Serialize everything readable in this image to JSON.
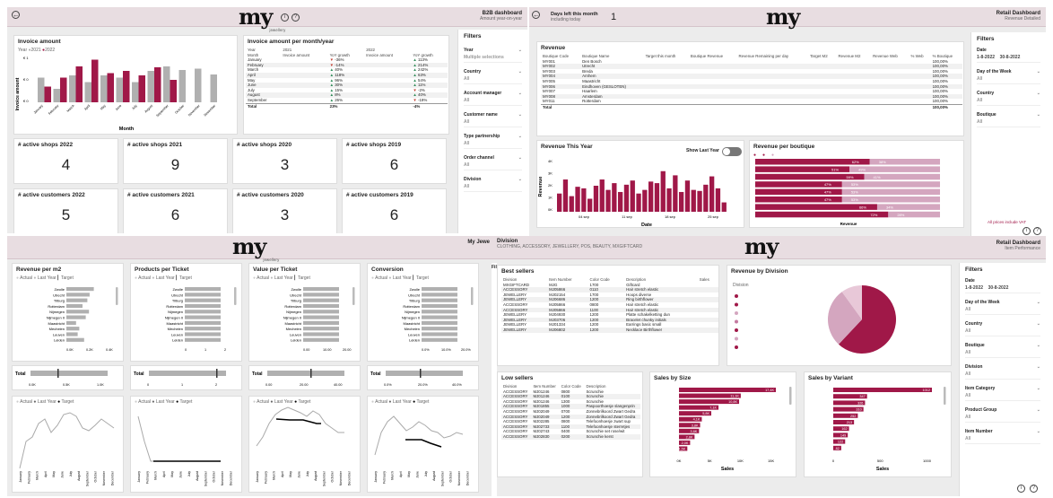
{
  "colors": {
    "accent": "#a01848",
    "light": "#d4a6bf",
    "grey": "#b0b0b0",
    "header": "#e8dde1"
  },
  "b2b": {
    "logo": "my",
    "logo_sub": "jewellery",
    "title": "B2B dashboard",
    "subtitle": "Amount year-on-year",
    "invoice": {
      "title": "Invoice amount",
      "legend_label": "Year",
      "y2021": "2021",
      "y2022": "2022",
      "ylabel": "Invoice amount",
      "xlabel": "Month",
      "yticks": [
        "€ 1",
        "€ 0",
        "€ 0"
      ]
    },
    "table": {
      "title": "Invoice amount per month/year",
      "h_year": "Year",
      "h_2021": "2021",
      "h_2022": "2022",
      "h_month": "Month",
      "h_inv": "Invoice amount",
      "h_yoy": "YoY growth",
      "rows": [
        [
          "January",
          "-36%",
          "113%"
        ],
        [
          "February",
          "-14%",
          "214%"
        ],
        [
          "March",
          "40%",
          "242%"
        ],
        [
          "April",
          "118%",
          "63%"
        ],
        [
          "May",
          "96%",
          "54%"
        ],
        [
          "June",
          "30%",
          "11%"
        ],
        [
          "July",
          "15%",
          "-2%"
        ],
        [
          "August",
          "8%",
          "40%"
        ],
        [
          "September",
          "26%",
          "-19%"
        ]
      ],
      "total_label": "Total",
      "total_yoy1": "23%",
      "total_yoy2": "-4%"
    },
    "kpis": [
      {
        "label": "# active shops 2022",
        "value": "4"
      },
      {
        "label": "# active shops 2021",
        "value": "9"
      },
      {
        "label": "# active shops 2020",
        "value": "3"
      },
      {
        "label": "# active shops 2019",
        "value": "6"
      },
      {
        "label": "# active customers 2022",
        "value": "5"
      },
      {
        "label": "# active customers 2021",
        "value": "6"
      },
      {
        "label": "# active customers 2020",
        "value": "3"
      },
      {
        "label": "# active customers 2019",
        "value": "6"
      }
    ],
    "filters": {
      "title": "Filters",
      "items": [
        {
          "label": "Year",
          "value": "Multiple selections"
        },
        {
          "label": "Country",
          "value": "All"
        },
        {
          "label": "Account manager",
          "value": "All"
        },
        {
          "label": "Customer name",
          "value": "All"
        },
        {
          "label": "Type partnership",
          "value": "All"
        },
        {
          "label": "Order channel",
          "value": "All"
        },
        {
          "label": "Division",
          "value": "All"
        }
      ]
    }
  },
  "retail_detail": {
    "days_left_label": "Days left this month",
    "days_left_sub": "including today",
    "days_left_value": "1",
    "logo": "my",
    "title": "Retail Dashboard",
    "subtitle": "Revenue Detailed",
    "revenue_table": {
      "title": "Revenue",
      "headers": [
        "Boutique Code",
        "Boutique Name",
        "Target this month",
        "Boutique Revenue",
        "Revenue Remaining per day",
        "Target M2",
        "Revenue M2",
        "Revenue Web",
        "% Web",
        "% Boutique"
      ],
      "rows": [
        [
          "MY001",
          "Den Bosch",
          "100,00%"
        ],
        [
          "MY002",
          "Utrecht",
          "100,00%"
        ],
        [
          "MY003",
          "Breda",
          "100,00%"
        ],
        [
          "MY004",
          "Arnhem",
          "100,00%"
        ],
        [
          "MY005",
          "Maastricht",
          "100,00%"
        ],
        [
          "MY006",
          "Eindhoven (GESLOTEN)",
          "100,00%"
        ],
        [
          "MY007",
          "Haarlem",
          "100,00%"
        ],
        [
          "MY008",
          "Amsterdam",
          "100,00%"
        ],
        [
          "MY011",
          "Rotterdam",
          "100,00%"
        ]
      ],
      "total_label": "Total",
      "total_value": "100,00%"
    },
    "rev_this_year": {
      "title": "Revenue This Year",
      "toggle_label": "Show Last Year",
      "ylabel": "Revenue",
      "xlabel": "Date",
      "xticks": [
        "04 sep",
        "11 sep",
        "18 sep",
        "25 sep"
      ],
      "yticks": [
        "4K",
        "3K",
        "2K",
        "1K",
        "0K"
      ]
    },
    "rev_boutique": {
      "title": "Revenue per boutique",
      "xlabel": "Revenue",
      "bars": [
        {
          "a": "62%",
          "b": "38%",
          "v": 0.62
        },
        {
          "a": "51%",
          "b": "49%",
          "v": 0.51
        },
        {
          "a": "59%",
          "b": "41%",
          "v": 0.59
        },
        {
          "a": "47%",
          "b": "53%",
          "v": 0.47
        },
        {
          "a": "47%",
          "b": "53%",
          "v": 0.47
        },
        {
          "a": "47%",
          "b": "53%",
          "v": 0.47
        },
        {
          "a": "66%",
          "b": "34%",
          "v": 0.66
        },
        {
          "a": "72%",
          "b": "28%",
          "v": 0.72
        }
      ]
    },
    "filters": {
      "title": "Filters",
      "date_label": "Date",
      "date_from": "1-8-2022",
      "date_to": "30-8-2022",
      "items": [
        {
          "label": "Day of the Week",
          "value": "All"
        },
        {
          "label": "Country",
          "value": "All"
        },
        {
          "label": "Boutique",
          "value": "All"
        }
      ],
      "note": "All prices include VAT"
    }
  },
  "perf_left": {
    "logo": "my",
    "header_text": "My Jewe",
    "cards": [
      {
        "title": "Revenue per m2",
        "ticks": [
          "0.0K",
          "0.2K",
          "0.4K"
        ],
        "total_ticks": [
          "0.0K",
          "0.5K",
          "1.0K"
        ]
      },
      {
        "title": "Products per Ticket",
        "ticks": [
          "0",
          "1",
          "2"
        ],
        "total_ticks": [
          "0",
          "1",
          "2"
        ]
      },
      {
        "title": "Value per Ticket",
        "ticks": [
          "0.00",
          "10.00",
          "20.00"
        ],
        "total_ticks": [
          "0.00",
          "20.00",
          "40.00"
        ]
      },
      {
        "title": "Conversion",
        "ticks": [
          "0.0%",
          "10.0%",
          "20.0%"
        ],
        "total_ticks": [
          "0.0%",
          "20.0%",
          "40.0%"
        ]
      }
    ],
    "legend": {
      "actual": "Actual",
      "last_year": "Last Year",
      "target": "Target"
    },
    "boutiques": [
      "Zwolle",
      "Utrecht",
      "Tilburg",
      "Rotterdam",
      "Nijmegen",
      "Nijmegen II",
      "Maastricht",
      "Mechelen",
      "Leuven",
      "Leiden"
    ],
    "total_label": "Total",
    "months": [
      "January",
      "February",
      "March",
      "April",
      "May",
      "June",
      "July",
      "August",
      "September",
      "October",
      "November",
      "December"
    ]
  },
  "perf_right": {
    "division_label": "Division",
    "division_value": "CLOTHING, ACCESSORY, JEWELLERY, POS, BEAUTY, MXGIFTCARD",
    "logo": "my",
    "title": "Retail Dashboard",
    "subtitle": "Item Performance",
    "best": {
      "title": "Best sellers",
      "headers": [
        "Division",
        "Item Number",
        "Color Code",
        "Description",
        "Sales"
      ],
      "rows": [
        [
          "MXGIFTCARD",
          "MJG",
          "1700",
          "Giftcard"
        ],
        [
          "ACCESSORY",
          "MJ05866",
          "0110",
          "Hair stretch elastic"
        ],
        [
          "JEWELLERY",
          "MJ02154",
          "1700",
          "Hoops diverse"
        ],
        [
          "JEWELLERY",
          "MJ06686",
          "1200",
          "Ring birthflower"
        ],
        [
          "ACCESSORY",
          "MJ05866",
          "0800",
          "Hair stretch elastic"
        ],
        [
          "ACCESSORY",
          "MJ05866",
          "1100",
          "Hair stretch elastic"
        ],
        [
          "JEWELLERY",
          "MJ04930",
          "1200",
          "Platte schakelketting dun"
        ],
        [
          "JEWELLERY",
          "MJ03706",
          "1200",
          "Bracelet chunky initials"
        ],
        [
          "JEWELLERY",
          "MJ01334",
          "1200",
          "Earrings basic small"
        ],
        [
          "JEWELLERY",
          "MJ06802",
          "1200",
          "Necklace Birthflower"
        ]
      ]
    },
    "low": {
      "title": "Low sellers",
      "headers": [
        "Division",
        "Item Number",
        "Color Code",
        "Description"
      ],
      "rows": [
        [
          "ACCESSORY",
          "MJ01246",
          "0800",
          "Scrunchie"
        ],
        [
          "ACCESSORY",
          "MJ01246",
          "0100",
          "Scrunchie"
        ],
        [
          "ACCESSORY",
          "MJ01246",
          "1300",
          "Scrunchie"
        ],
        [
          "ACCESSORY",
          "MJ01855",
          "1000",
          "Paspoorthoesje slangenprin"
        ],
        [
          "ACCESSORY",
          "MJ02049",
          "0700",
          "Zonnebrilkoord Zwart Gedra"
        ],
        [
          "ACCESSORY",
          "MJ02049",
          "1200",
          "Zonnebrilkoord Zwart Gedra"
        ],
        [
          "ACCESSORY",
          "MJ02285",
          "0800",
          "Telefoonhoesje zwart sup"
        ],
        [
          "ACCESSORY",
          "MJ02733",
          "1100",
          "Telefoonhoesje sterretjes"
        ],
        [
          "ACCESSORY",
          "MJ02743",
          "0400",
          "Scrunchie set rose/wit"
        ],
        [
          "ACCESSORY",
          "MJ02830",
          "0200",
          "Scrunchie kerst"
        ]
      ]
    },
    "division": {
      "title": "Revenue by Division",
      "legend_title": "Division"
    },
    "size": {
      "title": "Sales by Size",
      "xlabel": "Sales",
      "labels": [
        "17,4K",
        "11,1K",
        "10,8K",
        "7,1K",
        "5,8K",
        "4,1K",
        "3,8K",
        "3,6K",
        "2,8K",
        "2,0K",
        "1,5K"
      ],
      "values": [
        17.4,
        11.1,
        10.8,
        7.1,
        5.8,
        4.1,
        3.8,
        3.6,
        2.8,
        2.0,
        1.5
      ],
      "ticks": [
        "0K",
        "5K",
        "10K",
        "15K"
      ]
    },
    "variant": {
      "title": "Sales by Variant",
      "xlabel": "Sales",
      "labels": [
        "1012",
        "347",
        "326",
        "310",
        "252",
        "213",
        "162",
        "149",
        "122",
        "82"
      ],
      "values": [
        1012,
        347,
        326,
        310,
        252,
        213,
        162,
        149,
        122,
        82
      ],
      "ticks": [
        "0",
        "500",
        "1000"
      ]
    },
    "filters": {
      "title": "Filters",
      "date_label": "Date",
      "date_from": "1-8-2022",
      "date_to": "30-8-2022",
      "items": [
        {
          "label": "Day of the Week",
          "value": "All"
        },
        {
          "label": "Country",
          "value": "All"
        },
        {
          "label": "Boutique",
          "value": "All"
        },
        {
          "label": "Division",
          "value": "All"
        },
        {
          "label": "Item Category",
          "value": "All"
        },
        {
          "label": "Product Group",
          "value": "All"
        },
        {
          "label": "Item Number",
          "value": "All"
        }
      ]
    }
  }
}
